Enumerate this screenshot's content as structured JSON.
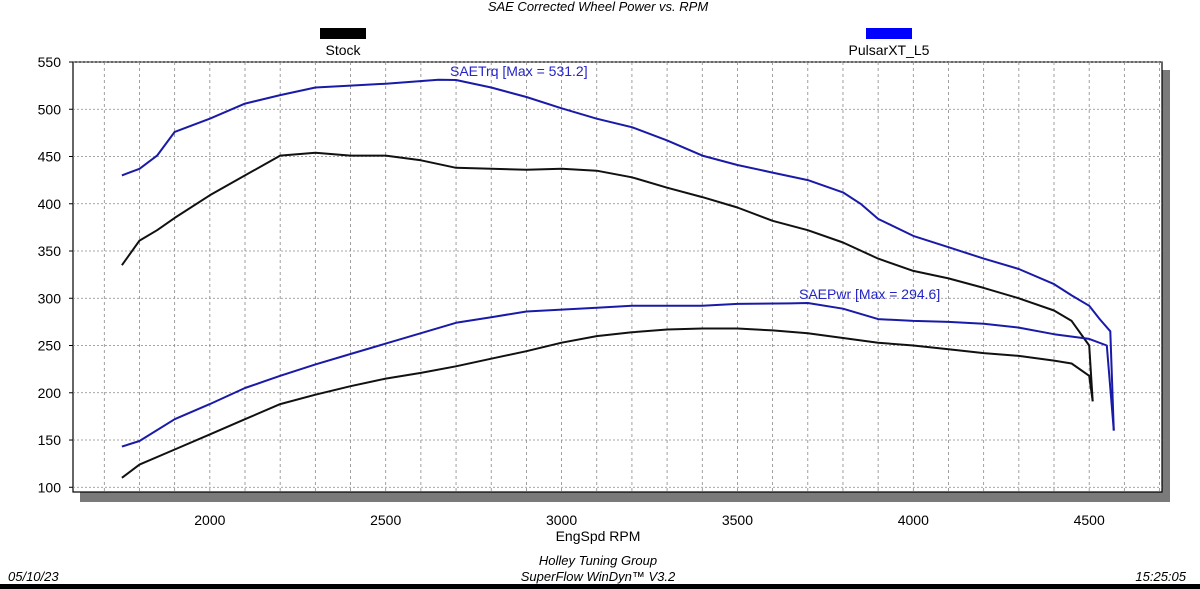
{
  "chart_data": {
    "type": "line",
    "title": "SAE Corrected Wheel Power vs. RPM",
    "xlabel": "EngSpd RPM",
    "ylabel": "",
    "xlim": [
      1611,
      4707
    ],
    "ylim": [
      95,
      550
    ],
    "xticks": [
      2000,
      2500,
      3000,
      3500,
      4000,
      4500
    ],
    "yticks": [
      100,
      150,
      200,
      250,
      300,
      350,
      400,
      450,
      500,
      550
    ],
    "grid": true,
    "legend": [
      {
        "name": "Stock",
        "color": "#000000"
      },
      {
        "name": "PulsarXT_L5",
        "color": "#0000ff"
      }
    ],
    "annotations": {
      "torque": "SAETrq [Max = 531.2]",
      "power": "SAEPwr [Max = 294.6]"
    },
    "series": [
      {
        "name": "PulsarXT_L5",
        "color": "#1a1aa8",
        "x": [
          1750,
          1800,
          1850,
          1900,
          1950,
          2000,
          2100,
          2200,
          2300,
          2400,
          2500,
          2650,
          2700,
          2800,
          2900,
          3000,
          3100,
          3200,
          3300,
          3400,
          3500,
          3600,
          3700,
          3800,
          3850,
          3900,
          4000,
          4100,
          4200,
          4300,
          4400,
          4450,
          4500,
          4530,
          4560,
          4570
        ],
        "y": [
          430,
          437,
          451,
          476,
          483,
          490,
          506,
          515,
          523,
          525,
          527,
          531.2,
          531,
          523,
          513,
          501,
          490,
          481,
          467,
          451,
          441,
          433,
          425,
          412,
          400,
          384,
          366,
          354,
          342,
          331,
          315,
          303,
          292,
          278,
          265,
          160
        ]
      },
      {
        "name": "Stock",
        "color": "#111111",
        "x": [
          1750,
          1800,
          1850,
          1900,
          2000,
          2100,
          2200,
          2300,
          2400,
          2500,
          2600,
          2700,
          2800,
          2900,
          3000,
          3100,
          3200,
          3300,
          3400,
          3500,
          3600,
          3700,
          3800,
          3900,
          4000,
          4100,
          4200,
          4300,
          4400,
          4450,
          4500,
          4510
        ],
        "y": [
          335,
          361,
          372,
          385,
          409,
          430,
          451,
          454,
          451,
          451,
          446,
          438,
          437,
          436,
          437,
          435,
          428,
          417,
          407,
          396,
          382,
          372,
          359,
          342,
          329,
          321,
          311,
          300,
          287,
          276,
          250,
          191
        ]
      },
      {
        "name": "PulsarXT_L5",
        "color": "#1a1aa8",
        "x": [
          1750,
          1800,
          1900,
          2000,
          2100,
          2200,
          2300,
          2400,
          2500,
          2600,
          2700,
          2800,
          2900,
          3000,
          3100,
          3200,
          3300,
          3400,
          3500,
          3650,
          3700,
          3800,
          3900,
          4000,
          4100,
          4200,
          4300,
          4400,
          4500,
          4550,
          4570
        ],
        "y": [
          143,
          149,
          172,
          188,
          205,
          218,
          230,
          241,
          252,
          263,
          274,
          280,
          286,
          288,
          290,
          292,
          292,
          292,
          294,
          294.6,
          295,
          289,
          278,
          276,
          275,
          273,
          269,
          262,
          257,
          250,
          160
        ]
      },
      {
        "name": "Stock",
        "color": "#111111",
        "x": [
          1750,
          1800,
          1900,
          2000,
          2100,
          2200,
          2300,
          2400,
          2500,
          2600,
          2700,
          2800,
          2900,
          3000,
          3100,
          3200,
          3300,
          3400,
          3500,
          3600,
          3700,
          3800,
          3900,
          4000,
          4100,
          4200,
          4300,
          4400,
          4450,
          4500,
          4510
        ],
        "y": [
          110,
          124,
          140,
          156,
          172,
          188,
          198,
          207,
          215,
          221,
          228,
          236,
          244,
          253,
          260,
          264,
          267,
          268,
          268,
          266,
          263,
          258,
          253,
          250,
          246,
          242,
          239,
          234,
          231,
          218,
          191
        ]
      }
    ]
  },
  "footer": {
    "company": "Holley Tuning Group",
    "software": "SuperFlow WinDyn™ V3.2",
    "date": "05/10/23",
    "time": "15:25:05"
  }
}
